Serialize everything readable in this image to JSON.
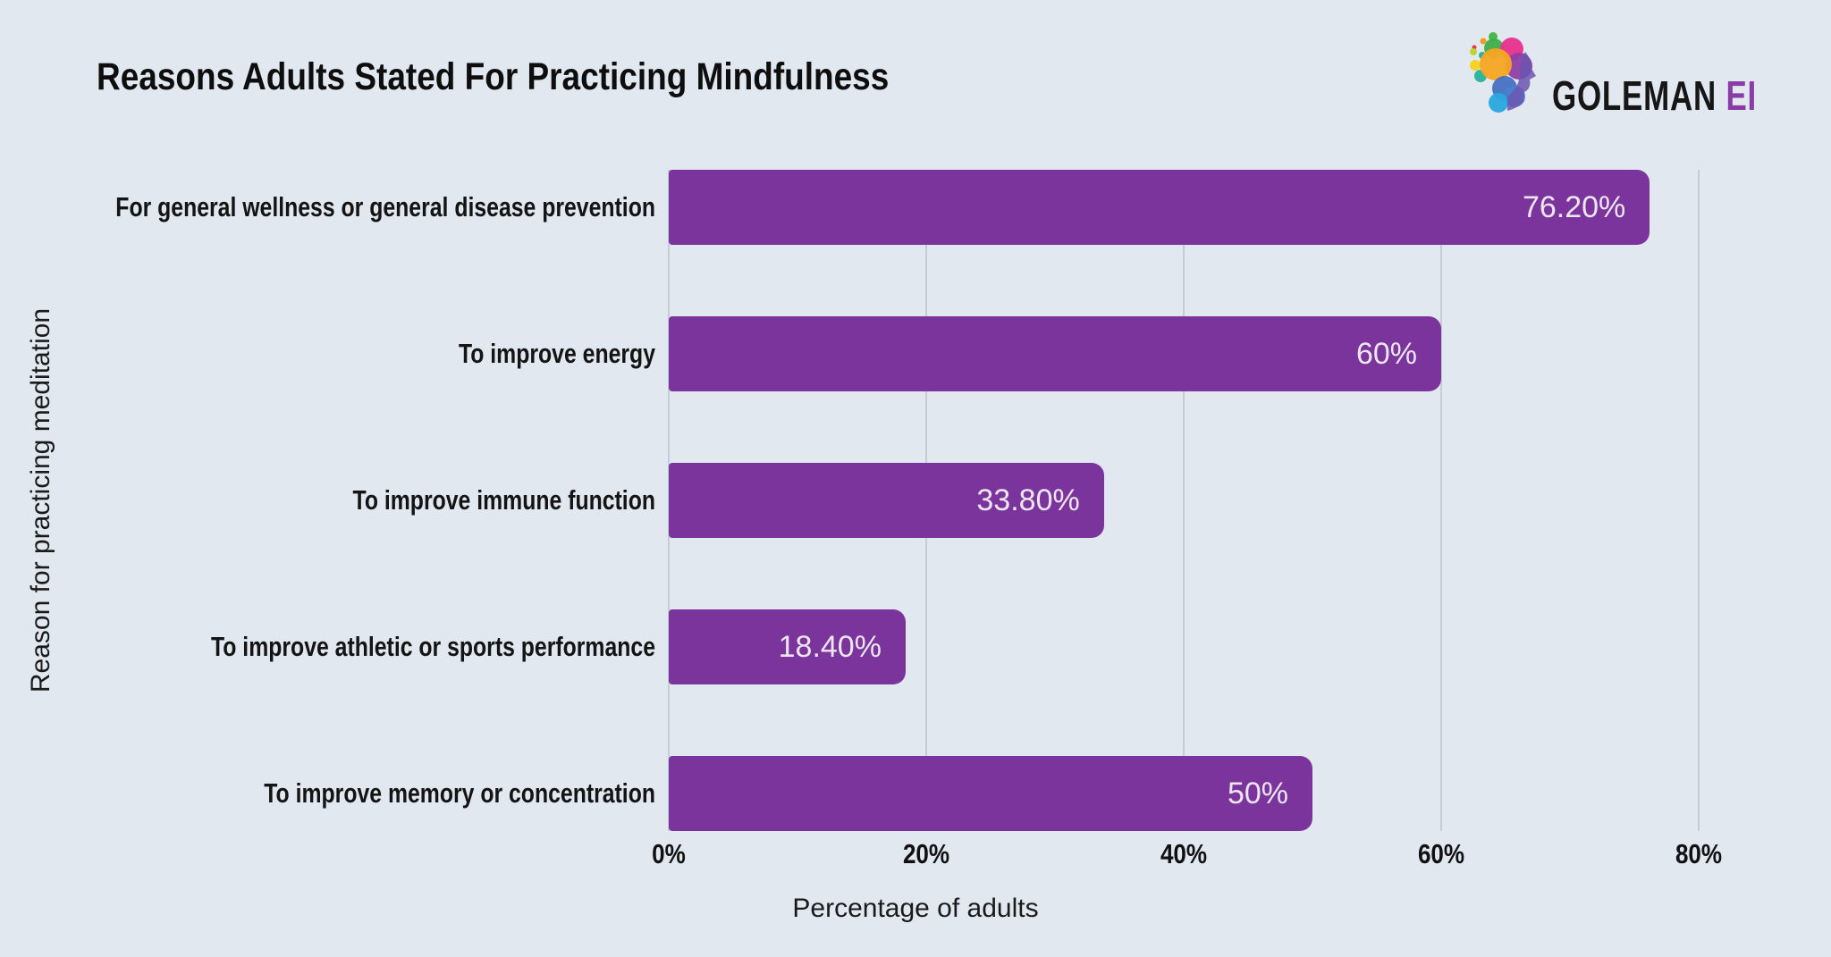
{
  "header": {
    "title": "Reasons Adults Stated For Practicing Mindfulness",
    "logo": {
      "brand": "GOLEMAN",
      "suffix": "EI"
    }
  },
  "chart_data": {
    "type": "bar",
    "orientation": "horizontal",
    "title": "Reasons Adults Stated For Practicing Mindfulness",
    "categories": [
      "For general wellness or general disease prevention",
      "To improve energy",
      "To improve immune function",
      "To improve athletic or sports performance",
      "To improve memory or concentration"
    ],
    "values": [
      76.2,
      60,
      33.8,
      18.4,
      50
    ],
    "value_labels": [
      "76.20%",
      "60%",
      "33.80%",
      "18.40%",
      "50%"
    ],
    "xlabel": "Percentage of adults",
    "ylabel": "Reason for practicing meditation",
    "xlim": [
      0,
      80
    ],
    "xticks": [
      {
        "value": 0,
        "label": "0%"
      },
      {
        "value": 20,
        "label": "20%"
      },
      {
        "value": 40,
        "label": "40%"
      },
      {
        "value": 60,
        "label": "60%"
      },
      {
        "value": 80,
        "label": "80%"
      }
    ],
    "grid": true,
    "legend": false,
    "colors": {
      "bar": "#7a349b",
      "gridline": "#c7ccd8",
      "background": "#e2e8f0",
      "value_label": "#ece6f2",
      "text": "#141414"
    }
  }
}
